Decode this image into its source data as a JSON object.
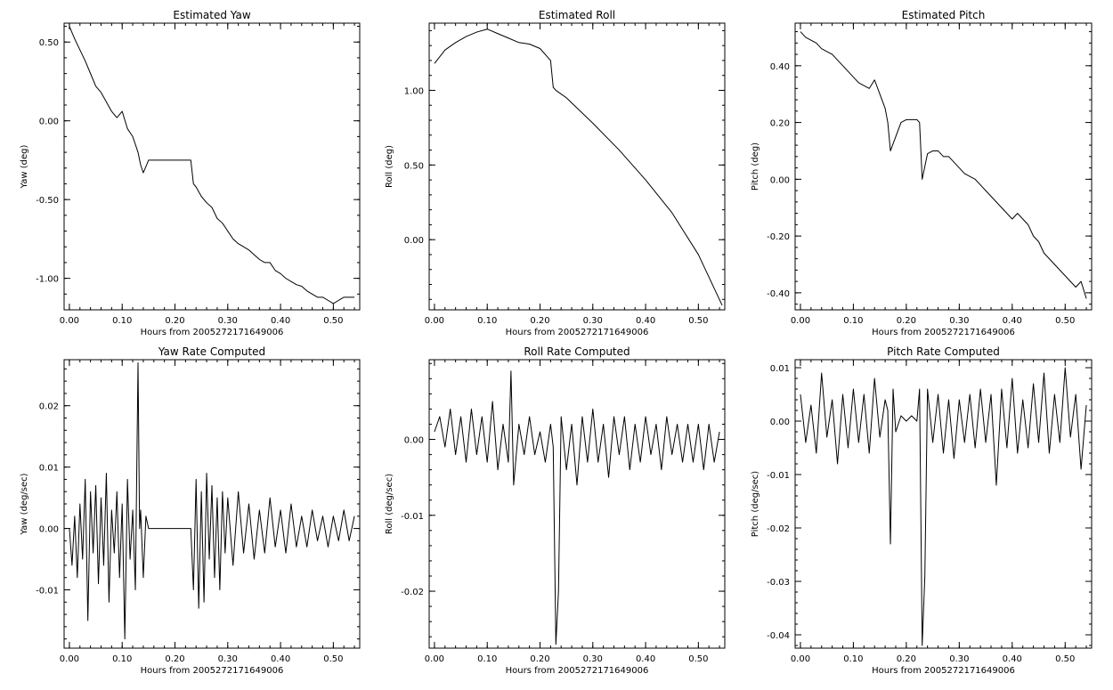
{
  "chart_data": [
    {
      "type": "line",
      "title": "Estimated Yaw",
      "xlabel": "Hours from 2005272171649006",
      "ylabel": "Yaw (deg)",
      "xlim": [
        -0.01,
        0.55
      ],
      "ylim": [
        -1.2,
        0.62
      ],
      "xticks": [
        0.0,
        0.1,
        0.2,
        0.3,
        0.4,
        0.5
      ],
      "xtick_labels": [
        "0.00",
        "0.10",
        "0.20",
        "0.30",
        "0.40",
        "0.50"
      ],
      "yticks": [
        0.5,
        0.0,
        -0.5,
        -1.0
      ],
      "ytick_labels": [
        "0.50",
        "0.00",
        "-0.50",
        "-1.00"
      ],
      "series": [
        {
          "x": [
            0.0,
            0.01,
            0.02,
            0.03,
            0.04,
            0.05,
            0.06,
            0.07,
            0.08,
            0.09,
            0.1,
            0.11,
            0.12,
            0.13,
            0.135,
            0.14,
            0.15,
            0.2,
            0.23,
            0.235,
            0.24,
            0.25,
            0.26,
            0.27,
            0.28,
            0.29,
            0.3,
            0.31,
            0.32,
            0.33,
            0.34,
            0.35,
            0.36,
            0.37,
            0.38,
            0.39,
            0.4,
            0.41,
            0.42,
            0.43,
            0.44,
            0.45,
            0.46,
            0.47,
            0.48,
            0.49,
            0.5,
            0.51,
            0.52,
            0.53,
            0.54
          ],
          "y": [
            0.6,
            0.52,
            0.45,
            0.38,
            0.3,
            0.22,
            0.18,
            0.12,
            0.06,
            0.02,
            0.06,
            -0.05,
            -0.1,
            -0.2,
            -0.28,
            -0.33,
            -0.25,
            -0.25,
            -0.25,
            -0.4,
            -0.42,
            -0.48,
            -0.52,
            -0.55,
            -0.62,
            -0.65,
            -0.7,
            -0.75,
            -0.78,
            -0.8,
            -0.82,
            -0.85,
            -0.88,
            -0.9,
            -0.9,
            -0.95,
            -0.97,
            -1.0,
            -1.02,
            -1.04,
            -1.05,
            -1.08,
            -1.1,
            -1.12,
            -1.12,
            -1.14,
            -1.16,
            -1.14,
            -1.12,
            -1.12,
            -1.12
          ]
        }
      ]
    },
    {
      "type": "line",
      "title": "Estimated Roll",
      "xlabel": "Hours from 2005272171649006",
      "ylabel": "Roll (deg)",
      "xlim": [
        -0.01,
        0.55
      ],
      "ylim": [
        -0.47,
        1.45
      ],
      "xticks": [
        0.0,
        0.1,
        0.2,
        0.3,
        0.4,
        0.5
      ],
      "xtick_labels": [
        "0.00",
        "0.10",
        "0.20",
        "0.30",
        "0.40",
        "0.50"
      ],
      "yticks": [
        1.0,
        0.5,
        0.0
      ],
      "ytick_labels": [
        "1.00",
        "0.50",
        "0.00"
      ],
      "series": [
        {
          "x": [
            0.0,
            0.02,
            0.04,
            0.06,
            0.08,
            0.1,
            0.12,
            0.14,
            0.16,
            0.18,
            0.2,
            0.22,
            0.225,
            0.23,
            0.25,
            0.3,
            0.35,
            0.4,
            0.45,
            0.5,
            0.545
          ],
          "y": [
            1.18,
            1.27,
            1.32,
            1.36,
            1.39,
            1.41,
            1.38,
            1.35,
            1.32,
            1.31,
            1.28,
            1.2,
            1.02,
            1.0,
            0.95,
            0.78,
            0.6,
            0.4,
            0.18,
            -0.1,
            -0.44
          ]
        }
      ]
    },
    {
      "type": "line",
      "title": "Estimated Pitch",
      "xlabel": "Hours from 2005272171649006",
      "ylabel": "Pitch (deg)",
      "xlim": [
        -0.01,
        0.55
      ],
      "ylim": [
        -0.46,
        0.55
      ],
      "xticks": [
        0.0,
        0.1,
        0.2,
        0.3,
        0.4,
        0.5
      ],
      "xtick_labels": [
        "0.00",
        "0.10",
        "0.20",
        "0.30",
        "0.40",
        "0.50"
      ],
      "yticks": [
        0.4,
        0.2,
        0.0,
        -0.2,
        -0.4
      ],
      "ytick_labels": [
        "0.40",
        "0.20",
        "0.00",
        "-0.20",
        "-0.40"
      ],
      "series": [
        {
          "x": [
            0.0,
            0.01,
            0.02,
            0.03,
            0.04,
            0.05,
            0.06,
            0.07,
            0.08,
            0.09,
            0.1,
            0.11,
            0.12,
            0.13,
            0.14,
            0.15,
            0.16,
            0.165,
            0.17,
            0.18,
            0.19,
            0.2,
            0.21,
            0.22,
            0.225,
            0.23,
            0.24,
            0.25,
            0.26,
            0.27,
            0.28,
            0.29,
            0.3,
            0.31,
            0.32,
            0.33,
            0.34,
            0.35,
            0.36,
            0.37,
            0.38,
            0.39,
            0.4,
            0.41,
            0.42,
            0.43,
            0.44,
            0.45,
            0.46,
            0.47,
            0.48,
            0.49,
            0.5,
            0.51,
            0.52,
            0.53,
            0.54
          ],
          "y": [
            0.52,
            0.5,
            0.49,
            0.48,
            0.46,
            0.45,
            0.44,
            0.42,
            0.4,
            0.38,
            0.36,
            0.34,
            0.33,
            0.32,
            0.35,
            0.3,
            0.25,
            0.2,
            0.1,
            0.15,
            0.2,
            0.21,
            0.21,
            0.21,
            0.2,
            0.0,
            0.09,
            0.1,
            0.1,
            0.08,
            0.08,
            0.06,
            0.04,
            0.02,
            0.01,
            0.0,
            -0.02,
            -0.04,
            -0.06,
            -0.08,
            -0.1,
            -0.12,
            -0.14,
            -0.12,
            -0.14,
            -0.16,
            -0.2,
            -0.22,
            -0.26,
            -0.28,
            -0.3,
            -0.32,
            -0.34,
            -0.36,
            -0.38,
            -0.36,
            -0.42
          ]
        }
      ]
    },
    {
      "type": "line",
      "title": "Yaw Rate Computed",
      "xlabel": "Hours from 2005272171649006",
      "ylabel": "Yaw (deg/sec)",
      "xlim": [
        -0.01,
        0.55
      ],
      "ylim": [
        -0.0195,
        0.0275
      ],
      "xticks": [
        0.0,
        0.1,
        0.2,
        0.3,
        0.4,
        0.5
      ],
      "xtick_labels": [
        "0.00",
        "0.10",
        "0.20",
        "0.30",
        "0.40",
        "0.50"
      ],
      "yticks": [
        0.02,
        0.01,
        0.0,
        -0.01
      ],
      "ytick_labels": [
        "0.02",
        "0.01",
        "0.00",
        "-0.01"
      ],
      "series": [
        {
          "x": [
            0.0,
            0.005,
            0.01,
            0.015,
            0.02,
            0.025,
            0.03,
            0.035,
            0.04,
            0.045,
            0.05,
            0.055,
            0.06,
            0.065,
            0.07,
            0.075,
            0.08,
            0.085,
            0.09,
            0.095,
            0.1,
            0.105,
            0.11,
            0.115,
            0.12,
            0.125,
            0.13,
            0.133,
            0.135,
            0.14,
            0.145,
            0.15,
            0.2,
            0.23,
            0.235,
            0.24,
            0.245,
            0.25,
            0.255,
            0.26,
            0.265,
            0.27,
            0.275,
            0.28,
            0.285,
            0.29,
            0.295,
            0.3,
            0.31,
            0.32,
            0.33,
            0.34,
            0.35,
            0.36,
            0.37,
            0.38,
            0.39,
            0.4,
            0.41,
            0.42,
            0.43,
            0.44,
            0.45,
            0.46,
            0.47,
            0.48,
            0.49,
            0.5,
            0.51,
            0.52,
            0.53,
            0.54
          ],
          "y": [
            0.0,
            -0.006,
            0.002,
            -0.008,
            0.004,
            -0.005,
            0.008,
            -0.015,
            0.006,
            -0.004,
            0.007,
            -0.009,
            0.005,
            -0.006,
            0.009,
            -0.012,
            0.003,
            -0.004,
            0.006,
            -0.008,
            0.004,
            -0.018,
            0.008,
            -0.005,
            0.003,
            -0.01,
            0.027,
            0.0,
            0.003,
            -0.008,
            0.002,
            0.0,
            0.0,
            0.0,
            -0.01,
            0.008,
            -0.013,
            0.006,
            -0.012,
            0.009,
            -0.005,
            0.007,
            -0.008,
            0.005,
            -0.01,
            0.006,
            -0.004,
            0.005,
            -0.006,
            0.006,
            -0.004,
            0.004,
            -0.005,
            0.003,
            -0.004,
            0.005,
            -0.003,
            0.003,
            -0.004,
            0.004,
            -0.003,
            0.002,
            -0.003,
            0.003,
            -0.002,
            0.002,
            -0.003,
            0.002,
            -0.002,
            0.003,
            -0.002,
            0.002
          ]
        }
      ]
    },
    {
      "type": "line",
      "title": "Roll Rate Computed",
      "xlabel": "Hours from 2005272171649006",
      "ylabel": "Roll (deg/sec)",
      "xlim": [
        -0.01,
        0.55
      ],
      "ylim": [
        -0.0275,
        0.0105
      ],
      "xticks": [
        0.0,
        0.1,
        0.2,
        0.3,
        0.4,
        0.5
      ],
      "xtick_labels": [
        "0.00",
        "0.10",
        "0.20",
        "0.30",
        "0.40",
        "0.50"
      ],
      "yticks": [
        0.0,
        -0.01,
        -0.02
      ],
      "ytick_labels": [
        "0.00",
        "-0.01",
        "-0.02"
      ],
      "series": [
        {
          "x": [
            0.0,
            0.01,
            0.02,
            0.03,
            0.04,
            0.05,
            0.06,
            0.07,
            0.08,
            0.09,
            0.1,
            0.11,
            0.12,
            0.13,
            0.14,
            0.145,
            0.15,
            0.16,
            0.17,
            0.18,
            0.19,
            0.2,
            0.21,
            0.22,
            0.225,
            0.23,
            0.235,
            0.24,
            0.25,
            0.26,
            0.27,
            0.28,
            0.29,
            0.3,
            0.31,
            0.32,
            0.33,
            0.34,
            0.35,
            0.36,
            0.37,
            0.38,
            0.39,
            0.4,
            0.41,
            0.42,
            0.43,
            0.44,
            0.45,
            0.46,
            0.47,
            0.48,
            0.49,
            0.5,
            0.51,
            0.52,
            0.53,
            0.54
          ],
          "y": [
            0.001,
            0.003,
            -0.001,
            0.004,
            -0.002,
            0.003,
            -0.003,
            0.004,
            -0.002,
            0.003,
            -0.003,
            0.005,
            -0.004,
            0.002,
            -0.003,
            0.009,
            -0.006,
            0.002,
            -0.002,
            0.003,
            -0.002,
            0.001,
            -0.003,
            0.002,
            -0.001,
            -0.027,
            -0.02,
            0.003,
            -0.004,
            0.002,
            -0.006,
            0.003,
            -0.003,
            0.004,
            -0.003,
            0.002,
            -0.005,
            0.003,
            -0.002,
            0.003,
            -0.004,
            0.002,
            -0.003,
            0.003,
            -0.002,
            0.002,
            -0.004,
            0.003,
            -0.002,
            0.002,
            -0.003,
            0.002,
            -0.003,
            0.002,
            -0.004,
            0.002,
            -0.003,
            0.001
          ]
        }
      ]
    },
    {
      "type": "line",
      "title": "Pitch Rate Computed",
      "xlabel": "Hours from 2005272171649006",
      "ylabel": "Pitch (deg/sec)",
      "xlim": [
        -0.01,
        0.55
      ],
      "ylim": [
        -0.0425,
        0.0115
      ],
      "xticks": [
        0.0,
        0.1,
        0.2,
        0.3,
        0.4,
        0.5
      ],
      "xtick_labels": [
        "0.00",
        "0.10",
        "0.20",
        "0.30",
        "0.40",
        "0.50"
      ],
      "yticks": [
        0.01,
        0.0,
        -0.01,
        -0.02,
        -0.03,
        -0.04
      ],
      "ytick_labels": [
        "0.01",
        "0.00",
        "-0.01",
        "-0.02",
        "-0.03",
        "-0.04"
      ],
      "series": [
        {
          "x": [
            0.0,
            0.01,
            0.02,
            0.03,
            0.04,
            0.05,
            0.06,
            0.07,
            0.08,
            0.09,
            0.1,
            0.11,
            0.12,
            0.13,
            0.14,
            0.15,
            0.16,
            0.165,
            0.17,
            0.175,
            0.18,
            0.19,
            0.2,
            0.21,
            0.22,
            0.225,
            0.23,
            0.235,
            0.24,
            0.25,
            0.26,
            0.27,
            0.28,
            0.29,
            0.3,
            0.31,
            0.32,
            0.33,
            0.34,
            0.35,
            0.36,
            0.37,
            0.38,
            0.39,
            0.4,
            0.41,
            0.42,
            0.43,
            0.44,
            0.45,
            0.46,
            0.47,
            0.48,
            0.49,
            0.5,
            0.51,
            0.52,
            0.53,
            0.54
          ],
          "y": [
            0.005,
            -0.004,
            0.003,
            -0.006,
            0.009,
            -0.003,
            0.004,
            -0.008,
            0.005,
            -0.005,
            0.006,
            -0.004,
            0.005,
            -0.006,
            0.008,
            -0.003,
            0.004,
            0.002,
            -0.023,
            0.006,
            -0.002,
            0.001,
            0.0,
            0.001,
            0.0,
            0.006,
            -0.042,
            -0.029,
            0.006,
            -0.004,
            0.005,
            -0.006,
            0.004,
            -0.007,
            0.004,
            -0.004,
            0.005,
            -0.005,
            0.006,
            -0.004,
            0.005,
            -0.012,
            0.006,
            -0.005,
            0.008,
            -0.006,
            0.004,
            -0.005,
            0.007,
            -0.004,
            0.009,
            -0.006,
            0.005,
            -0.004,
            0.01,
            -0.003,
            0.005,
            -0.009,
            0.003
          ]
        }
      ]
    }
  ]
}
